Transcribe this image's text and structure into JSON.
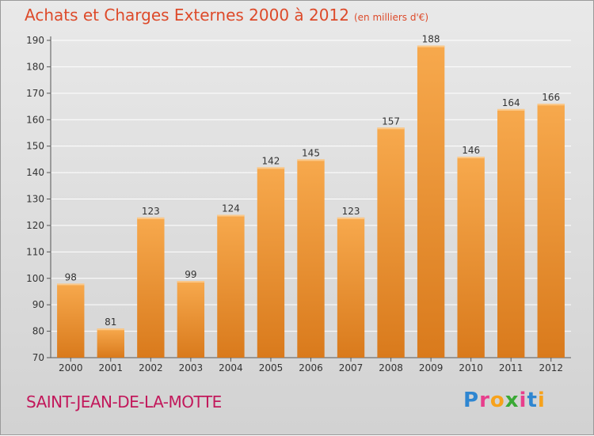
{
  "title": "Achats et Charges Externes 2000 à 2012",
  "unit": "(en milliers d'€)",
  "commune": "SAINT-JEAN-DE-LA-MOTTE",
  "logo": {
    "letters": [
      "P",
      "r",
      "o",
      "x",
      "i",
      "t",
      "i"
    ],
    "colors": [
      "#2e86d1",
      "#e83e8c",
      "#f7a21b",
      "#3aa935",
      "#e83e8c",
      "#2e86d1",
      "#f7a21b"
    ]
  },
  "colors": {
    "bar_light": "#f7a94d",
    "bar_dark": "#d97a1c",
    "title": "#dd4a2a",
    "commune": "#c2185b",
    "grid": "#ffffff"
  },
  "chart_data": {
    "type": "bar",
    "categories": [
      "2000",
      "2001",
      "2002",
      "2003",
      "2004",
      "2005",
      "2006",
      "2007",
      "2008",
      "2009",
      "2010",
      "2011",
      "2012"
    ],
    "values": [
      98,
      81,
      123,
      99,
      124,
      142,
      145,
      123,
      157,
      188,
      146,
      164,
      166
    ],
    "ylim": [
      70,
      190
    ],
    "yticks": [
      70,
      80,
      90,
      100,
      110,
      120,
      130,
      140,
      150,
      160,
      170,
      180,
      190
    ],
    "grid": true
  }
}
